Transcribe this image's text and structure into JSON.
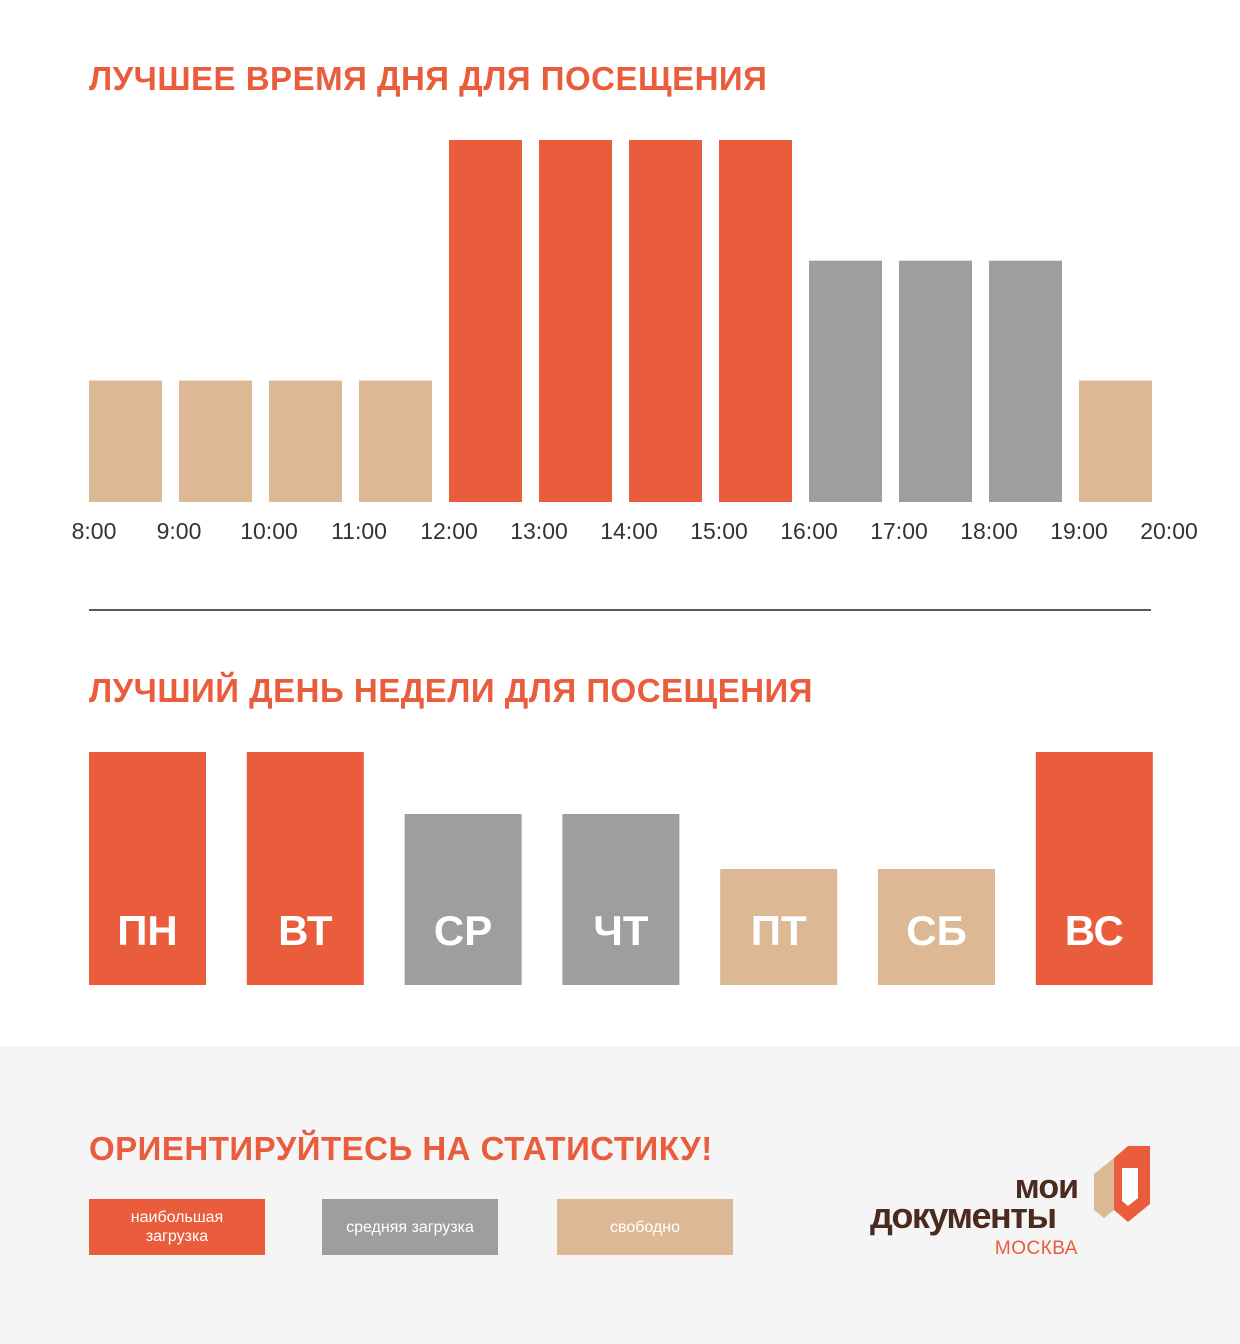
{
  "colors": {
    "busy": "#e95c3c",
    "medium": "#9e9e9e",
    "free": "#dcb994",
    "title": "#e95c3c",
    "logo_brown": "#4b2a20"
  },
  "hours_section": {
    "title": "ЛУЧШЕЕ ВРЕМЯ ДНЯ ДЛЯ ПОСЕЩЕНИЯ"
  },
  "days_section": {
    "title": "ЛУЧШИЙ ДЕНЬ НЕДЕЛИ ДЛЯ ПОСЕЩЕНИЯ"
  },
  "chart_data": [
    {
      "type": "bar",
      "title": "ЛУЧШЕЕ ВРЕМЯ ДНЯ ДЛЯ ПОСЕЩЕНИЯ",
      "tick_labels": [
        "8:00",
        "9:00",
        "10:00",
        "11:00",
        "12:00",
        "13:00",
        "14:00",
        "15:00",
        "16:00",
        "17:00",
        "18:00",
        "19:00",
        "20:00"
      ],
      "bars": [
        {
          "from": "8:00",
          "to": "9:00",
          "value": 1,
          "level": "free"
        },
        {
          "from": "9:00",
          "to": "10:00",
          "value": 1,
          "level": "free"
        },
        {
          "from": "10:00",
          "to": "11:00",
          "value": 1,
          "level": "free"
        },
        {
          "from": "11:00",
          "to": "12:00",
          "value": 1,
          "level": "free"
        },
        {
          "from": "12:00",
          "to": "13:00",
          "value": 3,
          "level": "busy"
        },
        {
          "from": "13:00",
          "to": "14:00",
          "value": 3,
          "level": "busy"
        },
        {
          "from": "14:00",
          "to": "15:00",
          "value": 3,
          "level": "busy"
        },
        {
          "from": "15:00",
          "to": "16:00",
          "value": 3,
          "level": "busy"
        },
        {
          "from": "16:00",
          "to": "17:00",
          "value": 2,
          "level": "medium"
        },
        {
          "from": "17:00",
          "to": "18:00",
          "value": 2,
          "level": "medium"
        },
        {
          "from": "18:00",
          "to": "19:00",
          "value": 2,
          "level": "medium"
        },
        {
          "from": "19:00",
          "to": "20:00",
          "value": 1,
          "level": "free"
        }
      ],
      "ylim": [
        0,
        3
      ]
    },
    {
      "type": "bar",
      "title": "ЛУЧШИЙ ДЕНЬ НЕДЕЛИ ДЛЯ ПОСЕЩЕНИЯ",
      "categories": [
        "ПН",
        "ВТ",
        "СР",
        "ЧТ",
        "ПТ",
        "СБ",
        "ВС"
      ],
      "values": [
        3,
        3,
        2,
        2,
        1,
        1,
        3
      ],
      "levels": [
        "busy",
        "busy",
        "medium",
        "medium",
        "free",
        "free",
        "busy"
      ],
      "ylim": [
        0,
        3
      ]
    }
  ],
  "footer": {
    "title": "ОРИЕНТИРУЙТЕСЬ НА СТАТИСТИКУ!",
    "legend": {
      "busy": "наибольшая загрузка",
      "medium": "средняя загрузка",
      "free": "свободно"
    },
    "logo": {
      "line1": "мои",
      "line2": "документы",
      "line3": "МОСКВА"
    }
  }
}
